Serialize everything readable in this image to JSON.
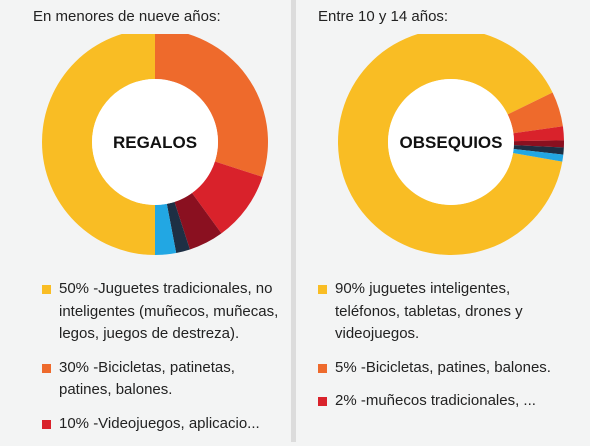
{
  "chart_data": [
    {
      "type": "donut",
      "heading": "En menores de nueve años:",
      "center_label": "REGALOS",
      "slices": [
        {
          "label": "50% -Juguetes tradicionales, no inteligentes (muñecos, muñecas, legos, juegos de destreza).",
          "value": 50,
          "color": "#f9bd24"
        },
        {
          "label": "30% -Bicicletas, patinetas, patines, balones.",
          "value": 30,
          "color": "#ee6a2c"
        },
        {
          "label": "10% -Videojuegos, aplicacio...",
          "value": 10,
          "color": "#d9222b"
        },
        {
          "value": 5,
          "color": "#8a1020"
        },
        {
          "value": 2,
          "color": "#1e2f44"
        },
        {
          "value": 3,
          "color": "#22a7e3"
        }
      ]
    },
    {
      "type": "donut",
      "heading": "Entre 10 y 14 años:",
      "center_label": "OBSEQUIOS",
      "slices": [
        {
          "label": "90% juguetes inteligentes, teléfonos, tabletas, drones y videojuegos.",
          "value": 90,
          "color": "#f9bd24"
        },
        {
          "label": "5% -Bicicletas, patines, balones.",
          "value": 5,
          "color": "#ee6a2c"
        },
        {
          "label": "2% -muñecos tradicionales, ...",
          "value": 2,
          "color": "#d9222b"
        },
        {
          "value": 1,
          "color": "#8a1020"
        },
        {
          "value": 1,
          "color": "#1e2f44"
        },
        {
          "value": 1,
          "color": "#22a7e3"
        }
      ]
    }
  ]
}
